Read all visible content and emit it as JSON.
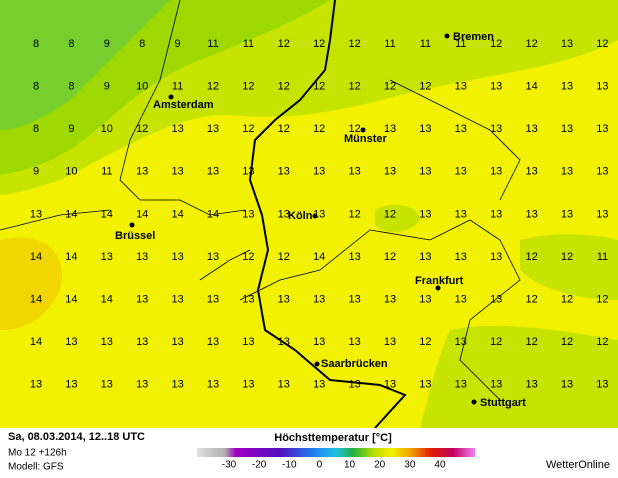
{
  "map": {
    "grid": {
      "rows": [
        [
          8,
          8,
          9,
          8,
          9,
          11,
          11,
          12,
          12,
          12,
          11,
          11,
          11,
          12,
          12,
          13,
          12
        ],
        [
          8,
          8,
          9,
          10,
          11,
          12,
          12,
          12,
          12,
          12,
          12,
          12,
          13,
          13,
          14,
          13,
          13
        ],
        [
          8,
          9,
          10,
          12,
          13,
          13,
          12,
          12,
          12,
          12,
          13,
          13,
          13,
          13,
          13,
          13,
          13
        ],
        [
          9,
          10,
          11,
          13,
          13,
          13,
          13,
          13,
          13,
          13,
          13,
          13,
          13,
          13,
          13,
          13,
          13
        ],
        [
          13,
          14,
          14,
          14,
          14,
          14,
          13,
          13,
          13,
          12,
          12,
          13,
          13,
          13,
          13,
          13,
          13
        ],
        [
          14,
          14,
          13,
          13,
          13,
          13,
          12,
          12,
          14,
          13,
          12,
          13,
          13,
          13,
          12,
          12,
          11
        ],
        [
          14,
          14,
          14,
          13,
          13,
          13,
          13,
          13,
          13,
          13,
          13,
          13,
          13,
          13,
          12,
          12,
          12
        ],
        [
          14,
          13,
          13,
          13,
          13,
          13,
          13,
          13,
          13,
          13,
          13,
          12,
          13,
          12,
          12,
          12,
          12
        ],
        [
          13,
          13,
          13,
          13,
          13,
          13,
          13,
          13,
          13,
          13,
          13,
          13,
          13,
          13,
          13,
          13,
          13
        ]
      ]
    },
    "cities": [
      "Bremen",
      "Amsterdam",
      "Münster",
      "Köln",
      "Brüssel",
      "Frankfurt",
      "Saarbrücken",
      "Stuttgart"
    ]
  },
  "footer": {
    "date": "Sa, 08.03.2014, 12..18 UTC",
    "run": "Mo 12 +126h",
    "model": "Modell: GFS",
    "brand": "WetterOnline"
  },
  "legend": {
    "title": "Höchsttemperatur [°C]",
    "ticks": [
      -30,
      -20,
      -10,
      0,
      10,
      20,
      30,
      40
    ]
  }
}
